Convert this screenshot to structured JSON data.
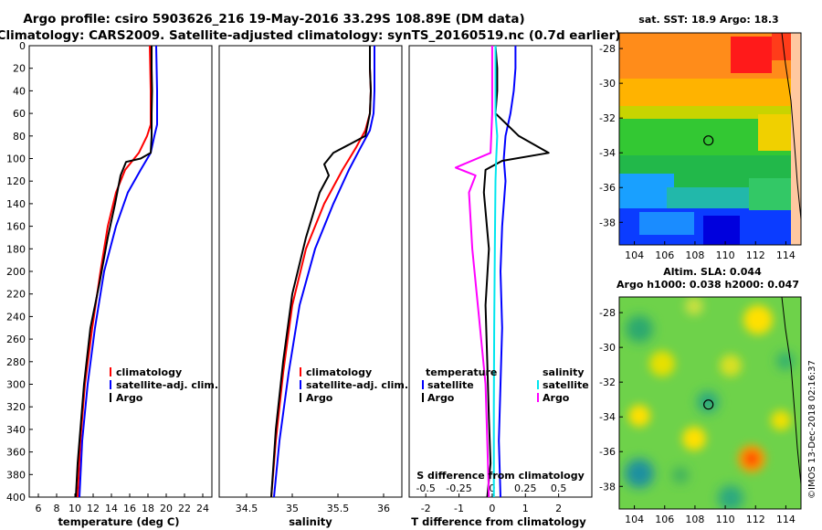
{
  "title_line1": "Argo profile: csiro 5903626_216 19-May-2016 33.29S 108.89E (DM data)",
  "title_line2": "Climatology: CARS2009. Satellite-adjusted climatology: synTS_20160519.nc (0.7d earlier)",
  "credit": "©IMOS 13-Dec-2018 02:16:37",
  "colors": {
    "climatology": "#ff0000",
    "satellite": "#0000ff",
    "argo": "#000000",
    "sal_satellite": "#00e5ee",
    "sal_argo": "#ff00ff"
  },
  "chart_data": [
    {
      "type": "line",
      "id": "temperature",
      "xlabel": "temperature (deg C)",
      "xlim": [
        5,
        25
      ],
      "xticks": [
        6,
        8,
        10,
        12,
        14,
        16,
        18,
        20,
        22,
        24
      ],
      "ylim": [
        0,
        400
      ],
      "yticks": [
        0,
        20,
        40,
        60,
        80,
        100,
        120,
        140,
        160,
        180,
        200,
        220,
        240,
        260,
        280,
        300,
        320,
        340,
        360,
        380,
        400
      ],
      "legend": [
        "climatology",
        "satellite-adj. clim.",
        "Argo"
      ],
      "series": [
        {
          "name": "climatology",
          "color": "#ff0000",
          "x": [
            18.2,
            18.25,
            18.3,
            18.3,
            18.3,
            17.9,
            17.0,
            15.5,
            14.5,
            13.6,
            12.8,
            11.9,
            11.1,
            10.6,
            10.3
          ],
          "y": [
            0,
            20,
            40,
            60,
            70,
            80,
            95,
            110,
            130,
            160,
            200,
            250,
            300,
            350,
            400
          ]
        },
        {
          "name": "satellite-adj. clim.",
          "color": "#0000ff",
          "x": [
            18.9,
            18.95,
            19.0,
            19.0,
            19.0,
            18.7,
            18.3,
            17.2,
            15.8,
            14.5,
            13.2,
            12.2,
            11.4,
            10.8,
            10.5
          ],
          "y": [
            0,
            20,
            40,
            60,
            70,
            80,
            95,
            110,
            130,
            160,
            200,
            250,
            300,
            350,
            400
          ]
        },
        {
          "name": "Argo",
          "color": "#000000",
          "x": [
            18.4,
            18.4,
            18.45,
            18.4,
            18.4,
            18.3,
            17.2,
            15.6,
            15.0,
            14.4,
            13.6,
            12.7,
            11.7,
            11.0,
            10.6,
            10.3,
            10.1
          ],
          "y": [
            0,
            20,
            40,
            60,
            80,
            95,
            100,
            103,
            115,
            140,
            170,
            210,
            250,
            300,
            340,
            370,
            400
          ]
        }
      ]
    },
    {
      "type": "line",
      "id": "salinity",
      "xlabel": "salinity",
      "xlim": [
        34.2,
        36.2
      ],
      "xticks": [
        34.5,
        35,
        35.5,
        36
      ],
      "ylim": [
        0,
        400
      ],
      "legend": [
        "climatology",
        "satellite-adj. clim.",
        "Argo"
      ],
      "series": [
        {
          "name": "climatology",
          "color": "#ff0000",
          "x": [
            35.85,
            35.85,
            35.86,
            35.85,
            35.8,
            35.7,
            35.55,
            35.35,
            35.15,
            35.0,
            34.9,
            34.82,
            34.77
          ],
          "y": [
            0,
            20,
            40,
            60,
            75,
            90,
            110,
            140,
            180,
            230,
            290,
            350,
            400
          ]
        },
        {
          "name": "satellite-adj. clim.",
          "color": "#0000ff",
          "x": [
            35.9,
            35.9,
            35.9,
            35.89,
            35.85,
            35.75,
            35.62,
            35.45,
            35.25,
            35.08,
            34.96,
            34.86,
            34.8
          ],
          "y": [
            0,
            20,
            40,
            60,
            75,
            90,
            110,
            140,
            180,
            230,
            290,
            350,
            400
          ]
        },
        {
          "name": "Argo",
          "color": "#000000",
          "x": [
            35.85,
            35.85,
            35.86,
            35.85,
            35.8,
            35.45,
            35.35,
            35.4,
            35.3,
            35.15,
            35.0,
            34.9,
            34.82,
            34.77
          ],
          "y": [
            0,
            20,
            40,
            60,
            80,
            95,
            105,
            115,
            130,
            170,
            220,
            280,
            340,
            400
          ]
        }
      ]
    },
    {
      "type": "line",
      "id": "difference",
      "xlabel": "T difference from climatology",
      "xlabel_top": "S difference from climatology",
      "xlim": [
        -2.5,
        3.0
      ],
      "xticks": [
        -2,
        -1,
        0,
        1,
        2
      ],
      "xticks_top": [
        -0.5,
        -0.25,
        0,
        0.25,
        0.5
      ],
      "ylim": [
        0,
        400
      ],
      "legend_title_temperature": "temperature",
      "legend_title_salinity": "salinity",
      "legend_labels_temperature": [
        "satellite",
        "Argo"
      ],
      "legend_labels_salinity": [
        "satellite",
        "Argo"
      ],
      "series": [
        {
          "name": "T satellite",
          "color": "#0000ff",
          "x": [
            0.7,
            0.7,
            0.65,
            0.55,
            0.4,
            0.35,
            0.4,
            0.3,
            0.25,
            0.3,
            0.25,
            0.2,
            0.25
          ],
          "y": [
            0,
            20,
            40,
            60,
            80,
            100,
            120,
            160,
            200,
            250,
            300,
            350,
            400
          ]
        },
        {
          "name": "T Argo",
          "color": "#000000",
          "x": [
            0.1,
            0.15,
            0.15,
            0.1,
            0.8,
            1.7,
            0.3,
            -0.2,
            -0.25,
            -0.1,
            -0.2,
            -0.15,
            -0.1,
            -0.05,
            -0.15
          ],
          "y": [
            0,
            20,
            40,
            60,
            80,
            95,
            102,
            110,
            130,
            180,
            230,
            280,
            330,
            370,
            400
          ]
        },
        {
          "name": "S satellite",
          "color": "#00e5ee",
          "x": [
            0.1,
            0.1,
            0.1,
            0.1,
            0.15,
            0.12,
            0.1,
            0.08,
            0.06,
            0.05,
            0.05
          ],
          "y": [
            0,
            20,
            40,
            60,
            80,
            100,
            120,
            180,
            250,
            320,
            400
          ]
        },
        {
          "name": "S Argo",
          "color": "#ff00ff",
          "x": [
            0,
            0,
            0,
            0,
            -0.05,
            -1.1,
            -0.5,
            -0.7,
            -0.6,
            -0.4,
            -0.2,
            -0.15,
            -0.1
          ],
          "y": [
            0,
            20,
            40,
            60,
            95,
            108,
            115,
            130,
            180,
            240,
            300,
            350,
            400
          ]
        }
      ]
    },
    {
      "type": "heatmap",
      "id": "sst_map",
      "title": "sat. SST: 18.9 Argo: 18.3",
      "xticks": [
        104,
        106,
        108,
        110,
        112,
        114
      ],
      "yticks": [
        -28,
        -30,
        -32,
        -34,
        -36,
        -38
      ],
      "xlim": [
        103,
        115
      ],
      "ylim": [
        -39.3,
        -27.1
      ],
      "argo_position": [
        108.89,
        -33.29
      ]
    },
    {
      "type": "heatmap",
      "id": "sla_map",
      "title_line1": "Altim. SLA: 0.044",
      "title_line2": "Argo h1000: 0.038 h2000: 0.047",
      "xticks": [
        104,
        106,
        108,
        110,
        112,
        114
      ],
      "yticks": [
        -28,
        -30,
        -32,
        -34,
        -36,
        -38
      ],
      "xlim": [
        103,
        115
      ],
      "ylim": [
        -39.3,
        -27.1
      ],
      "argo_position": [
        108.89,
        -33.29
      ]
    }
  ]
}
